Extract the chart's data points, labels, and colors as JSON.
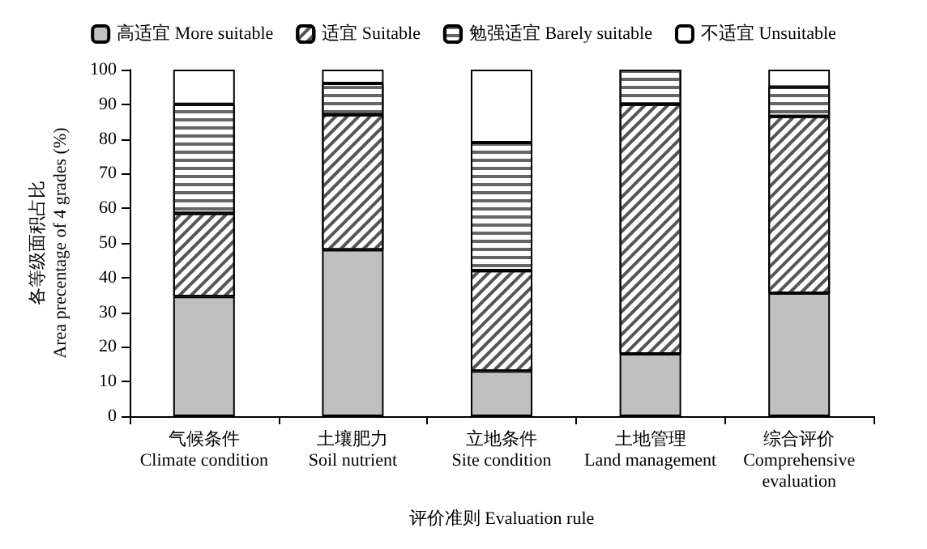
{
  "chart_data": {
    "type": "bar",
    "stacked": true,
    "xlabel": "评价准则 Evaluation rule",
    "ylabel": "各等级面积占比\nArea precentage of 4 grades (%)",
    "categories": [
      "气候条件\nClimate condition",
      "土壤肥力\nSoil nutrient",
      "立地条件\nSite condition",
      "土地管理\nLand management",
      "综合评价\nComprehensive\nevaluation"
    ],
    "series": [
      {
        "name": "高适宜 More suitable",
        "color": "#c0c0c0",
        "values": [
          34.5,
          48,
          13,
          18,
          35.5
        ]
      },
      {
        "name": "适宜 Suitable",
        "color": "#ffffff",
        "values": [
          24,
          39,
          29,
          72,
          51
        ]
      },
      {
        "name": "勉强适宜 Barely suitable",
        "color": "#ffffff",
        "values": [
          31.5,
          9,
          37,
          10,
          8.5
        ]
      },
      {
        "name": "不适宜 Unsuitable",
        "color": "#ffffff",
        "values": [
          10,
          4,
          21,
          0,
          5
        ]
      }
    ],
    "ylim": [
      0,
      100
    ],
    "yticks": [
      0,
      10,
      20,
      30,
      40,
      50,
      60,
      70,
      80,
      90,
      100
    ],
    "grid": false,
    "legend": "top"
  }
}
